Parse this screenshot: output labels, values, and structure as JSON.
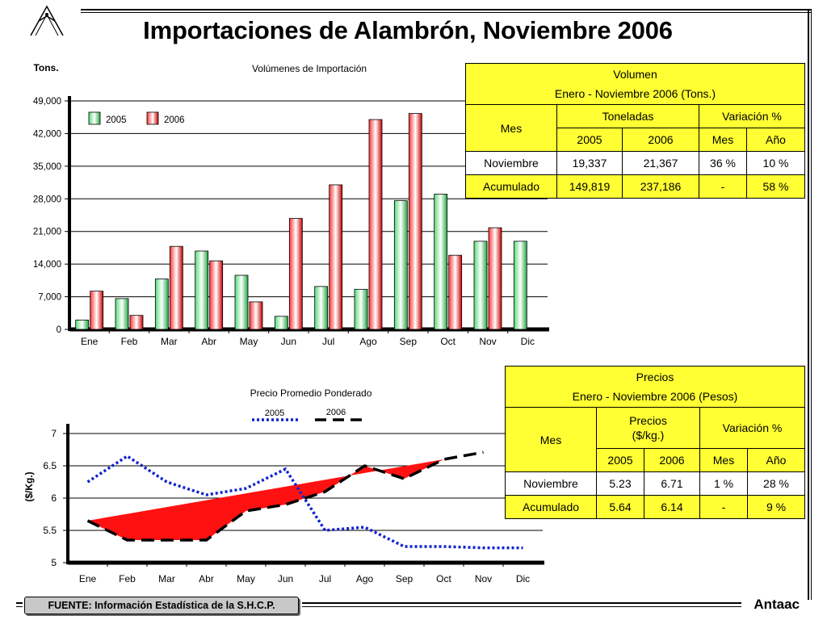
{
  "title": "Importaciones de Alambrón, Noviembre 2006",
  "logo_icon": "antaac-logo-icon",
  "chart_data": [
    {
      "type": "bar",
      "title": "Volúmenes de Importación",
      "ylabel": "Tons.",
      "ylim": [
        0,
        49000
      ],
      "yticks": [
        0,
        7000,
        14000,
        21000,
        28000,
        35000,
        42000,
        49000
      ],
      "ytick_labels": [
        "0",
        "7,000",
        "14,000",
        "21,000",
        "28,000",
        "35,000",
        "42,000",
        "49,000"
      ],
      "grid": true,
      "legend_position": "top-left",
      "categories": [
        "Ene",
        "Feb",
        "Mar",
        "Abr",
        "May",
        "Jun",
        "Jul",
        "Ago",
        "Sep",
        "Oct",
        "Nov",
        "Dic"
      ],
      "series": [
        {
          "name": "2005",
          "color": "#33cc55",
          "values": [
            2000,
            6600,
            10800,
            16800,
            11600,
            2800,
            9200,
            8600,
            27600,
            29000,
            18900,
            18900
          ]
        },
        {
          "name": "2006",
          "color": "#ee1111",
          "values": [
            8200,
            3000,
            17800,
            14700,
            5900,
            23800,
            31000,
            45000,
            46300,
            15900,
            21800,
            null
          ]
        }
      ]
    },
    {
      "type": "line",
      "title": "Precio Promedio Ponderado",
      "ylabel": "($/Kg.)",
      "ylim": [
        5,
        7
      ],
      "yticks": [
        5,
        5.5,
        6,
        6.5,
        7
      ],
      "ytick_labels": [
        "5",
        "5.5",
        "6",
        "6.5",
        "7"
      ],
      "grid": true,
      "legend_position": "top-center",
      "categories": [
        "Ene",
        "Feb",
        "Mar",
        "Abr",
        "May",
        "Jun",
        "Jul",
        "Ago",
        "Sep",
        "Oct",
        "Nov",
        "Dic"
      ],
      "series": [
        {
          "name": "2005",
          "color": "#1122cc",
          "style": "dotted",
          "values": [
            6.25,
            6.65,
            6.25,
            6.05,
            6.15,
            6.45,
            5.5,
            5.55,
            5.25,
            5.25,
            5.23,
            5.23
          ]
        },
        {
          "name": "2006",
          "color": "#000000",
          "style": "dashed",
          "values": [
            5.65,
            5.35,
            5.35,
            5.35,
            5.8,
            5.9,
            6.1,
            6.5,
            6.3,
            6.6,
            6.71,
            null
          ]
        }
      ],
      "annotation": "red area between first and last 2006 values"
    }
  ],
  "volume_table": {
    "header1": "Volumen",
    "header2": "Enero -  Noviembre 2006 (Tons.)",
    "col_mes": "Mes",
    "col_group1": "Toneladas",
    "col_group2": "Variación %",
    "sub": [
      "2005",
      "2006",
      "Mes",
      "Año"
    ],
    "rows": [
      {
        "label": "Noviembre",
        "cells": [
          "19,337",
          "21,367",
          "36 %",
          "10 %"
        ]
      },
      {
        "label": "Acumulado",
        "cells": [
          "149,819",
          "237,186",
          "-",
          "58 %"
        ]
      }
    ]
  },
  "price_table": {
    "header1": "Precios",
    "header2": "Enero - Noviembre 2006 (Pesos)",
    "col_mes": "Mes",
    "col_group1a": "Precios",
    "col_group1b": "($/kg.)",
    "col_group2": "Variación %",
    "sub": [
      "2005",
      "2006",
      "Mes",
      "Año"
    ],
    "rows": [
      {
        "label": "Noviembre",
        "cells": [
          "5.23",
          "6.71",
          "1 %",
          "28 %"
        ]
      },
      {
        "label": "Acumulado",
        "cells": [
          "5.64",
          "6.14",
          "-",
          "9 %"
        ]
      }
    ]
  },
  "footer": {
    "source": "FUENTE: Información Estadística de la S.H.C.P.",
    "brand": "Antaac"
  }
}
